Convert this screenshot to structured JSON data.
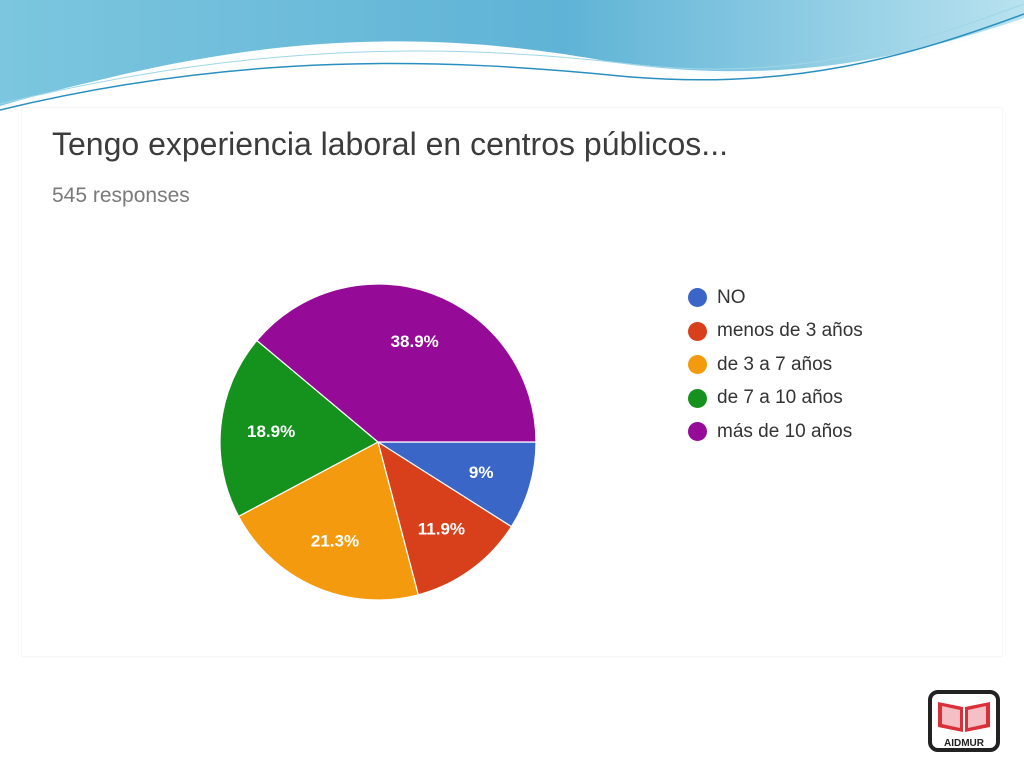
{
  "chart_data": {
    "type": "pie",
    "title": "Tengo experiencia laboral en centros públicos...",
    "subtitle": "545 responses",
    "start_angle_deg": 90,
    "direction": "clockwise",
    "legend_position": "right",
    "slices": [
      {
        "name": "NO",
        "value": 9,
        "label": "9%",
        "color": "#3a66c8"
      },
      {
        "name": "menos de 3 años",
        "value": 11.9,
        "label": "11.9%",
        "color": "#d8401c"
      },
      {
        "name": "de 3 a 7 años",
        "value": 21.3,
        "label": "21.3%",
        "color": "#f49a0e"
      },
      {
        "name": "de 7 a 10 años",
        "value": 18.9,
        "label": "18.9%",
        "color": "#15921d"
      },
      {
        "name": "más de 10 años",
        "value": 38.9,
        "label": "38.9%",
        "color": "#950a96"
      }
    ]
  },
  "logo": {
    "text": "AIDMUR",
    "colors": {
      "border": "#222222",
      "book": "#d9303a"
    }
  }
}
